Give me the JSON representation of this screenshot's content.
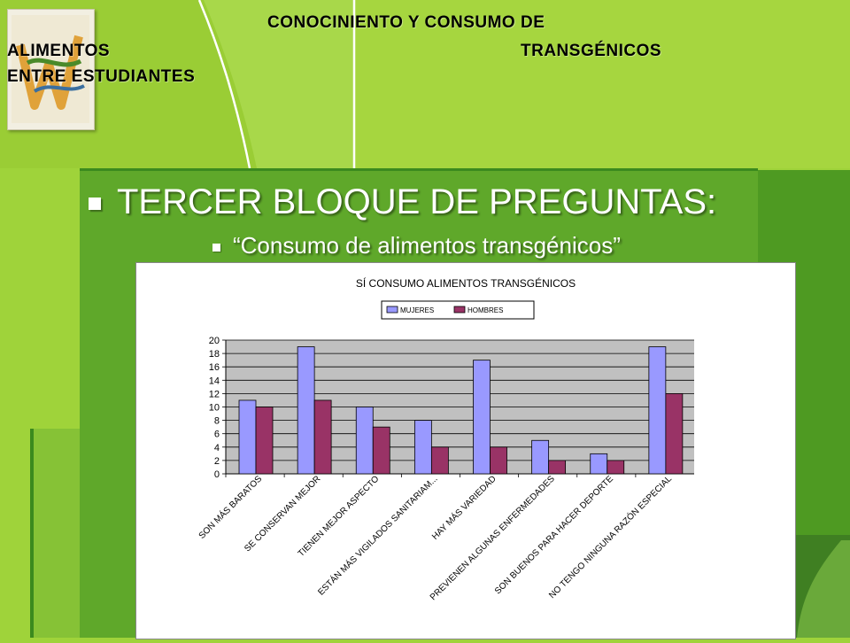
{
  "slide": {
    "title_line1": "CONOCINIENTO Y CONSUMO DE",
    "title_line2a": "ALIMENTOS",
    "title_line2b": "TRANSGÉNICOS",
    "title_line3": "ENTRE ESTUDIANTES",
    "heading": "TERCER BLOQUE DE PREGUNTAS:",
    "subheading": "“Consumo de alimentos transgénicos”"
  },
  "colors": {
    "background_green": "#9fd33a",
    "panel_green": "#5fa82a",
    "dark_green": "#3b8a1e",
    "mujeres": "#9999ff",
    "hombres": "#993366"
  },
  "chart_data": {
    "type": "bar",
    "title": "SÍ CONSUMO ALIMENTOS TRANSGÉNICOS",
    "categories": [
      "SON MÁS BARATOS",
      "SE CONSERVAN MEJOR",
      "TIENEN MEJOR ASPECTO",
      "ESTÁN MÁS VIGILADOS SANITARIAM...",
      "HAY MÁS VARIEDAD",
      "PREVIENEN ALGUNAS ENFERMEDADES",
      "SON BUENOS PARA HACER DEPORTE",
      "NO TENGO NINGUNA RAZÓN ESPECIAL"
    ],
    "series": [
      {
        "name": "MUJERES",
        "values": [
          11,
          19,
          10,
          8,
          17,
          5,
          3,
          19
        ]
      },
      {
        "name": "HOMBRES",
        "values": [
          10,
          11,
          7,
          4,
          4,
          2,
          2,
          12
        ]
      }
    ],
    "ylim": [
      0,
      20
    ],
    "yticks": [
      "0",
      "2",
      "4",
      "6",
      "8",
      "10",
      "12",
      "14",
      "16",
      "18",
      "20"
    ],
    "legend": "top-center",
    "grid": true
  }
}
